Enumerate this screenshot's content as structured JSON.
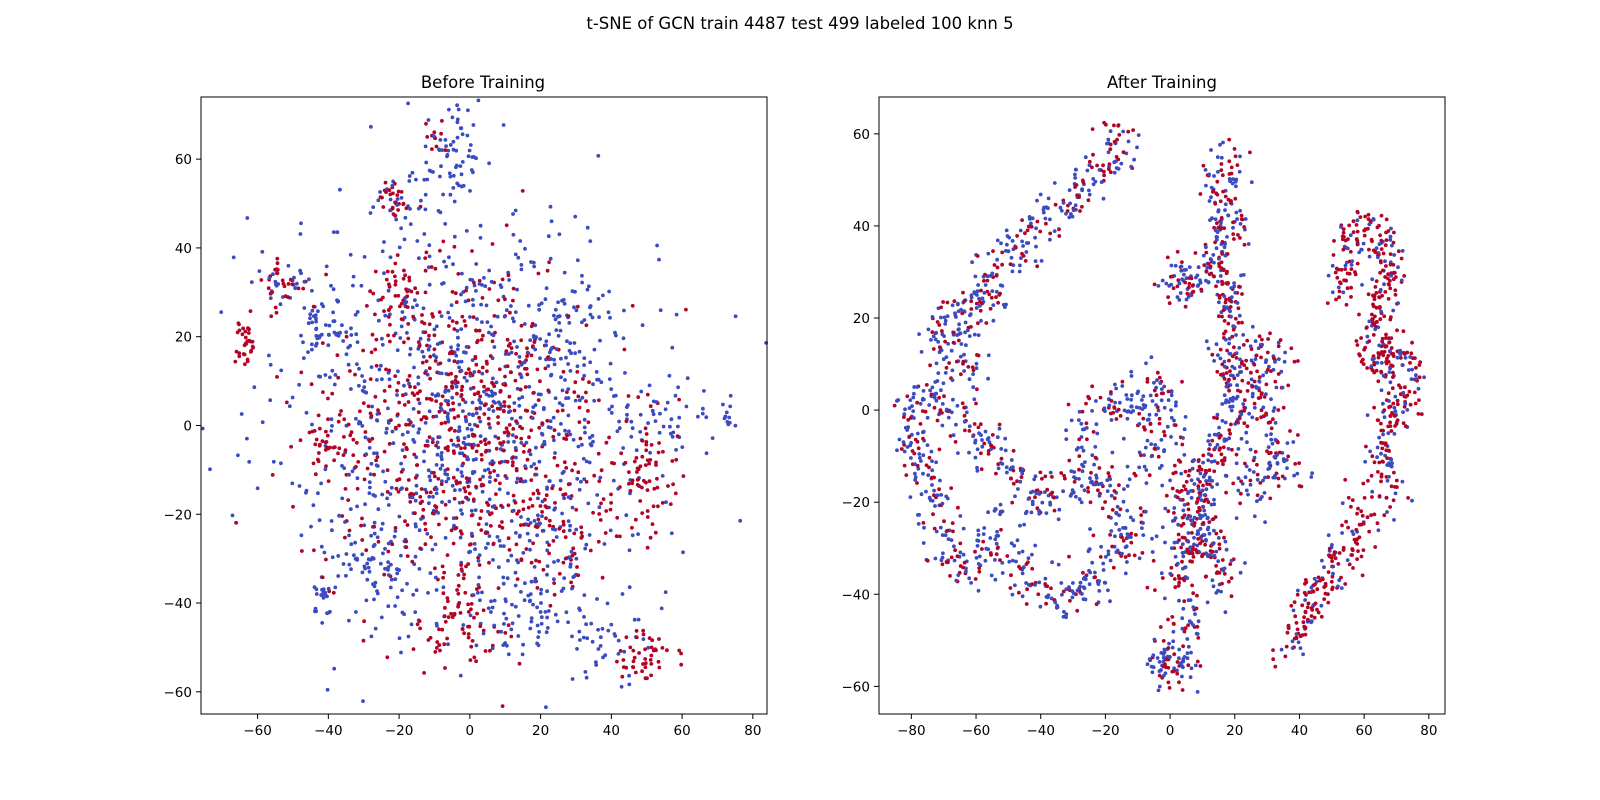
{
  "chart_data": {
    "suptitle": "t-SNE of GCN train 4487 test 499 labeled 100 knn 5",
    "colors": {
      "class_a": "#3b4cc0",
      "class_b": "#b40426"
    },
    "panels": [
      {
        "type": "scatter",
        "title": "Before Training",
        "xlabel": "",
        "ylabel": "",
        "xlim": [
          -76,
          84
        ],
        "ylim": [
          -65,
          74
        ],
        "xticks": [
          -60,
          -40,
          -20,
          0,
          20,
          40,
          60,
          80
        ],
        "xtick_labels": [
          "−60",
          "−40",
          "−20",
          "0",
          "20",
          "40",
          "60",
          "80"
        ],
        "yticks": [
          -60,
          -40,
          -20,
          0,
          20,
          40,
          60
        ],
        "ytick_labels": [
          "−60",
          "−40",
          "−20",
          "0",
          "20",
          "40",
          "60"
        ],
        "grid": false,
        "series": [
          {
            "name": "class_a",
            "color": "#3b4cc0",
            "clusters": [
              {
                "cx": 0,
                "cy": 0,
                "sx": 26,
                "sy": 24,
                "n": 900
              },
              {
                "cx": -5,
                "cy": 60,
                "sx": 4,
                "sy": 7,
                "n": 60
              },
              {
                "cx": -20,
                "cy": 50,
                "sx": 4,
                "sy": 3,
                "n": 30
              },
              {
                "cx": -42,
                "cy": 22,
                "sx": 4,
                "sy": 4,
                "n": 45
              },
              {
                "cx": -42,
                "cy": -40,
                "sx": 2,
                "sy": 3,
                "n": 20
              },
              {
                "cx": 40,
                "cy": -48,
                "sx": 5,
                "sy": 4,
                "n": 35
              },
              {
                "cx": 55,
                "cy": 0,
                "sx": 6,
                "sy": 5,
                "n": 40
              },
              {
                "cx": -53,
                "cy": 33,
                "sx": 4,
                "sy": 3,
                "n": 25
              },
              {
                "cx": -28,
                "cy": -30,
                "sx": 5,
                "sy": 5,
                "n": 50
              },
              {
                "cx": 18,
                "cy": -40,
                "sx": 8,
                "sy": 6,
                "n": 70
              },
              {
                "cx": 28,
                "cy": 18,
                "sx": 8,
                "sy": 8,
                "n": 80
              },
              {
                "cx": 73,
                "cy": 1,
                "sx": 1.2,
                "sy": 2,
                "n": 10
              }
            ]
          },
          {
            "name": "class_b",
            "color": "#b40426",
            "clusters": [
              {
                "cx": -2,
                "cy": -2,
                "sx": 20,
                "sy": 20,
                "n": 650
              },
              {
                "cx": -64,
                "cy": 18,
                "sx": 2,
                "sy": 3,
                "n": 30
              },
              {
                "cx": -22,
                "cy": 52,
                "sx": 2.5,
                "sy": 3,
                "n": 25
              },
              {
                "cx": -20,
                "cy": 30,
                "sx": 3,
                "sy": 3,
                "n": 35
              },
              {
                "cx": -40,
                "cy": -5,
                "sx": 4,
                "sy": 4,
                "n": 40
              },
              {
                "cx": 48,
                "cy": -52,
                "sx": 5,
                "sy": 3,
                "n": 45
              },
              {
                "cx": 50,
                "cy": -12,
                "sx": 6,
                "sy": 6,
                "n": 70
              },
              {
                "cx": -52,
                "cy": 32,
                "sx": 3,
                "sy": 3,
                "n": 25
              },
              {
                "cx": -2,
                "cy": -45,
                "sx": 6,
                "sy": 5,
                "n": 55
              },
              {
                "cx": 25,
                "cy": -25,
                "sx": 8,
                "sy": 6,
                "n": 60
              },
              {
                "cx": -10,
                "cy": 65,
                "sx": 2,
                "sy": 2,
                "n": 10
              }
            ]
          }
        ]
      },
      {
        "type": "scatter",
        "title": "After Training",
        "xlabel": "",
        "ylabel": "",
        "xlim": [
          -90,
          85
        ],
        "ylim": [
          -66,
          68
        ],
        "xticks": [
          -80,
          -60,
          -40,
          -20,
          0,
          20,
          40,
          60,
          80
        ],
        "xtick_labels": [
          "−80",
          "−60",
          "−40",
          "−20",
          "0",
          "20",
          "40",
          "60",
          "80"
        ],
        "yticks": [
          -60,
          -40,
          -20,
          0,
          20,
          40,
          60
        ],
        "ytick_labels": [
          "−60",
          "−40",
          "−20",
          "0",
          "20",
          "40",
          "60"
        ],
        "grid": false,
        "point_paths": [
          {
            "name": "upper-left arc",
            "frac_b": 0.3,
            "n": 330,
            "spread": 3.0,
            "points": [
              [
                -12,
                61
              ],
              [
                -22,
                52
              ],
              [
                -33,
                44
              ],
              [
                -44,
                38
              ],
              [
                -55,
                28
              ],
              [
                -62,
                20
              ],
              [
                -72,
                18
              ],
              [
                -65,
                12
              ],
              [
                -58,
                7
              ]
            ]
          },
          {
            "name": "left ring",
            "frac_b": 0.35,
            "n": 620,
            "spread": 3.2,
            "points": [
              [
                -68,
                5
              ],
              [
                -80,
                0
              ],
              [
                -78,
                -10
              ],
              [
                -70,
                -22
              ],
              [
                -73,
                -30
              ],
              [
                -62,
                -35
              ],
              [
                -55,
                -25
              ],
              [
                -48,
                -32
              ],
              [
                -38,
                -40
              ],
              [
                -33,
                -42
              ],
              [
                -25,
                -37
              ],
              [
                -18,
                -30
              ],
              [
                -10,
                -30
              ],
              [
                -15,
                -20
              ],
              [
                -24,
                -12
              ],
              [
                -32,
                -16
              ],
              [
                -42,
                -20
              ],
              [
                -50,
                -12
              ],
              [
                -60,
                -5
              ],
              [
                -66,
                0
              ]
            ]
          },
          {
            "name": "inner curl",
            "frac_b": 0.35,
            "n": 170,
            "spread": 3.2,
            "points": [
              [
                -28,
                -10
              ],
              [
                -25,
                -3
              ],
              [
                -18,
                2
              ],
              [
                -10,
                0
              ],
              [
                -5,
                5
              ],
              [
                -2,
                3
              ],
              [
                -4,
                -8
              ],
              [
                -10,
                -12
              ]
            ]
          },
          {
            "name": "center stem",
            "frac_b": 0.45,
            "n": 520,
            "spread": 3.0,
            "points": [
              [
                18,
                57
              ],
              [
                15,
                47
              ],
              [
                20,
                40
              ],
              [
                12,
                32
              ],
              [
                19,
                26
              ],
              [
                17,
                15
              ],
              [
                22,
                5
              ],
              [
                18,
                -5
              ],
              [
                12,
                -12
              ],
              [
                8,
                -20
              ],
              [
                12,
                -30
              ],
              [
                18,
                -38
              ]
            ]
          },
          {
            "name": "center upper-left lobe",
            "frac_b": 0.5,
            "n": 60,
            "spread": 2.5,
            "points": [
              [
                -2,
                28
              ],
              [
                5,
                30
              ],
              [
                8,
                25
              ],
              [
                0,
                26
              ]
            ]
          },
          {
            "name": "center right branch",
            "frac_b": 0.5,
            "n": 170,
            "spread": 3.0,
            "points": [
              [
                22,
                10
              ],
              [
                30,
                12
              ],
              [
                35,
                11
              ],
              [
                28,
                0
              ],
              [
                34,
                -8
              ],
              [
                38,
                -15
              ],
              [
                26,
                -12
              ],
              [
                22,
                -22
              ]
            ]
          },
          {
            "name": "center left branch",
            "frac_b": 0.45,
            "n": 120,
            "spread": 3.0,
            "points": [
              [
                5,
                -12
              ],
              [
                2,
                -22
              ],
              [
                5,
                -32
              ],
              [
                0,
                -38
              ],
              [
                10,
                -28
              ]
            ]
          },
          {
            "name": "bottom cluster",
            "frac_b": 0.4,
            "n": 110,
            "spread": 2.5,
            "points": [
              [
                10,
                -42
              ],
              [
                4,
                -48
              ],
              [
                -2,
                -52
              ],
              [
                -4,
                -57
              ],
              [
                0,
                -58
              ],
              [
                8,
                -52
              ]
            ]
          },
          {
            "name": "right arc",
            "frac_b": 0.65,
            "n": 600,
            "spread": 2.8,
            "points": [
              [
                52,
                25
              ],
              [
                58,
                40
              ],
              [
                65,
                38
              ],
              [
                68,
                28
              ],
              [
                64,
                18
              ],
              [
                62,
                10
              ],
              [
                72,
                12
              ],
              [
                75,
                5
              ],
              [
                68,
                0
              ],
              [
                66,
                -5
              ],
              [
                66,
                -12
              ],
              [
                68,
                -18
              ],
              [
                62,
                -20
              ],
              [
                58,
                -25
              ],
              [
                56,
                -30
              ],
              [
                50,
                -35
              ],
              [
                45,
                -40
              ],
              [
                40,
                -46
              ],
              [
                35,
                -52
              ]
            ]
          }
        ]
      }
    ]
  }
}
